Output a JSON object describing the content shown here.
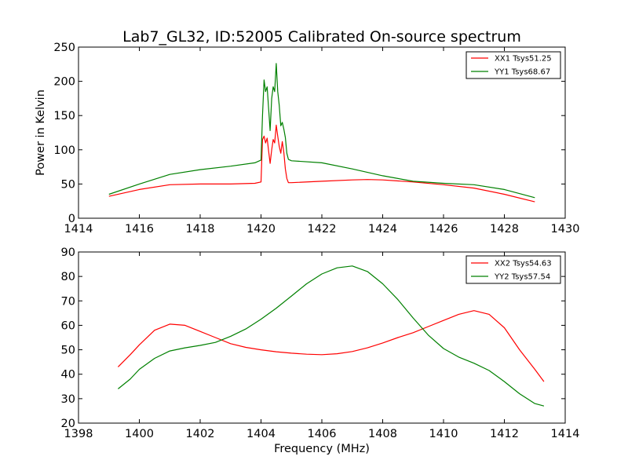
{
  "title": "Lab7_GL32, ID:52005 Calibrated On-source spectrum",
  "colors": {
    "xx": "#ff0000",
    "yy": "#008000"
  },
  "chart_data": [
    {
      "type": "line",
      "xlabel": "",
      "ylabel": "Power in Kelvin",
      "xlim": [
        1414,
        1430
      ],
      "ylim": [
        0,
        250
      ],
      "xticks": [
        1414,
        1416,
        1418,
        1420,
        1422,
        1424,
        1426,
        1428,
        1430
      ],
      "yticks": [
        0,
        50,
        100,
        150,
        200,
        250
      ],
      "legend": "top-right",
      "grid": false,
      "series": [
        {
          "name": "XX1 Tsys51.25",
          "color": "#ff0000",
          "points": [
            [
              1415,
              32
            ],
            [
              1416,
              42
            ],
            [
              1417,
              49
            ],
            [
              1418,
              50
            ],
            [
              1419,
              50
            ],
            [
              1419.8,
              51
            ],
            [
              1420.0,
              53
            ],
            [
              1420.05,
              115
            ],
            [
              1420.1,
              120
            ],
            [
              1420.15,
              110
            ],
            [
              1420.2,
              117
            ],
            [
              1420.25,
              98
            ],
            [
              1420.3,
              80
            ],
            [
              1420.35,
              100
            ],
            [
              1420.4,
              115
            ],
            [
              1420.45,
              110
            ],
            [
              1420.5,
              136
            ],
            [
              1420.55,
              120
            ],
            [
              1420.6,
              105
            ],
            [
              1420.65,
              95
            ],
            [
              1420.7,
              112
            ],
            [
              1420.75,
              96
            ],
            [
              1420.8,
              72
            ],
            [
              1420.85,
              58
            ],
            [
              1420.9,
              52
            ],
            [
              1421,
              52
            ],
            [
              1422,
              54
            ],
            [
              1423,
              56
            ],
            [
              1423.5,
              56.5
            ],
            [
              1424,
              56
            ],
            [
              1425,
              53
            ],
            [
              1426,
              49
            ],
            [
              1427,
              44
            ],
            [
              1428,
              35
            ],
            [
              1429,
              24
            ]
          ]
        },
        {
          "name": "YY1 Tsys68.67",
          "color": "#008000",
          "points": [
            [
              1415,
              35
            ],
            [
              1416,
              50
            ],
            [
              1417,
              64
            ],
            [
              1418,
              71
            ],
            [
              1419,
              76
            ],
            [
              1419.8,
              81
            ],
            [
              1420.0,
              85
            ],
            [
              1420.05,
              150
            ],
            [
              1420.1,
              202
            ],
            [
              1420.15,
              185
            ],
            [
              1420.2,
              192
            ],
            [
              1420.25,
              160
            ],
            [
              1420.3,
              128
            ],
            [
              1420.35,
              175
            ],
            [
              1420.4,
              192
            ],
            [
              1420.45,
              185
            ],
            [
              1420.5,
              226
            ],
            [
              1420.55,
              185
            ],
            [
              1420.6,
              165
            ],
            [
              1420.65,
              135
            ],
            [
              1420.7,
              140
            ],
            [
              1420.75,
              130
            ],
            [
              1420.8,
              118
            ],
            [
              1420.85,
              95
            ],
            [
              1420.9,
              86
            ],
            [
              1421,
              84
            ],
            [
              1422,
              81
            ],
            [
              1423,
              72
            ],
            [
              1424,
              62
            ],
            [
              1425,
              54
            ],
            [
              1426,
              51
            ],
            [
              1427,
              49
            ],
            [
              1428,
              42
            ],
            [
              1429,
              30
            ]
          ]
        }
      ]
    },
    {
      "type": "line",
      "xlabel": "Frequency (MHz)",
      "ylabel": "",
      "xlim": [
        1398,
        1414
      ],
      "ylim": [
        20,
        90
      ],
      "xticks": [
        1398,
        1400,
        1402,
        1404,
        1406,
        1408,
        1410,
        1412,
        1414
      ],
      "yticks": [
        20,
        30,
        40,
        50,
        60,
        70,
        80,
        90
      ],
      "legend": "top-right",
      "grid": false,
      "series": [
        {
          "name": "XX2 Tsys54.63",
          "color": "#ff0000",
          "points": [
            [
              1399.3,
              43
            ],
            [
              1399.7,
              48
            ],
            [
              1400,
              52
            ],
            [
              1400.5,
              58
            ],
            [
              1401,
              60.5
            ],
            [
              1401.5,
              60
            ],
            [
              1402,
              57.5
            ],
            [
              1402.5,
              55
            ],
            [
              1403,
              52.5
            ],
            [
              1403.5,
              51
            ],
            [
              1404,
              50
            ],
            [
              1404.5,
              49.2
            ],
            [
              1405,
              48.6
            ],
            [
              1405.5,
              48.2
            ],
            [
              1406,
              48
            ],
            [
              1406.5,
              48.4
            ],
            [
              1407,
              49.3
            ],
            [
              1407.5,
              50.8
            ],
            [
              1408,
              52.8
            ],
            [
              1408.5,
              55
            ],
            [
              1409,
              57
            ],
            [
              1409.5,
              59.5
            ],
            [
              1410,
              62
            ],
            [
              1410.5,
              64.5
            ],
            [
              1411,
              66
            ],
            [
              1411.5,
              64.5
            ],
            [
              1412,
              59
            ],
            [
              1412.5,
              50
            ],
            [
              1413,
              42
            ],
            [
              1413.3,
              37
            ]
          ]
        },
        {
          "name": "YY2 Tsys57.54",
          "color": "#008000",
          "points": [
            [
              1399.3,
              34
            ],
            [
              1399.7,
              38
            ],
            [
              1400,
              42
            ],
            [
              1400.5,
              46.5
            ],
            [
              1401,
              49.5
            ],
            [
              1401.5,
              50.8
            ],
            [
              1402,
              51.8
            ],
            [
              1402.5,
              53
            ],
            [
              1403,
              55.5
            ],
            [
              1403.5,
              58.5
            ],
            [
              1404,
              62.5
            ],
            [
              1404.5,
              67
            ],
            [
              1405,
              72
            ],
            [
              1405.5,
              77
            ],
            [
              1406,
              81
            ],
            [
              1406.5,
              83.5
            ],
            [
              1407,
              84.3
            ],
            [
              1407.5,
              82
            ],
            [
              1408,
              77
            ],
            [
              1408.5,
              70.5
            ],
            [
              1409,
              63
            ],
            [
              1409.5,
              56
            ],
            [
              1410,
              50.5
            ],
            [
              1410.5,
              47
            ],
            [
              1411,
              44.5
            ],
            [
              1411.5,
              41.5
            ],
            [
              1412,
              37
            ],
            [
              1412.5,
              32
            ],
            [
              1413,
              28
            ],
            [
              1413.3,
              27
            ]
          ]
        }
      ]
    }
  ]
}
